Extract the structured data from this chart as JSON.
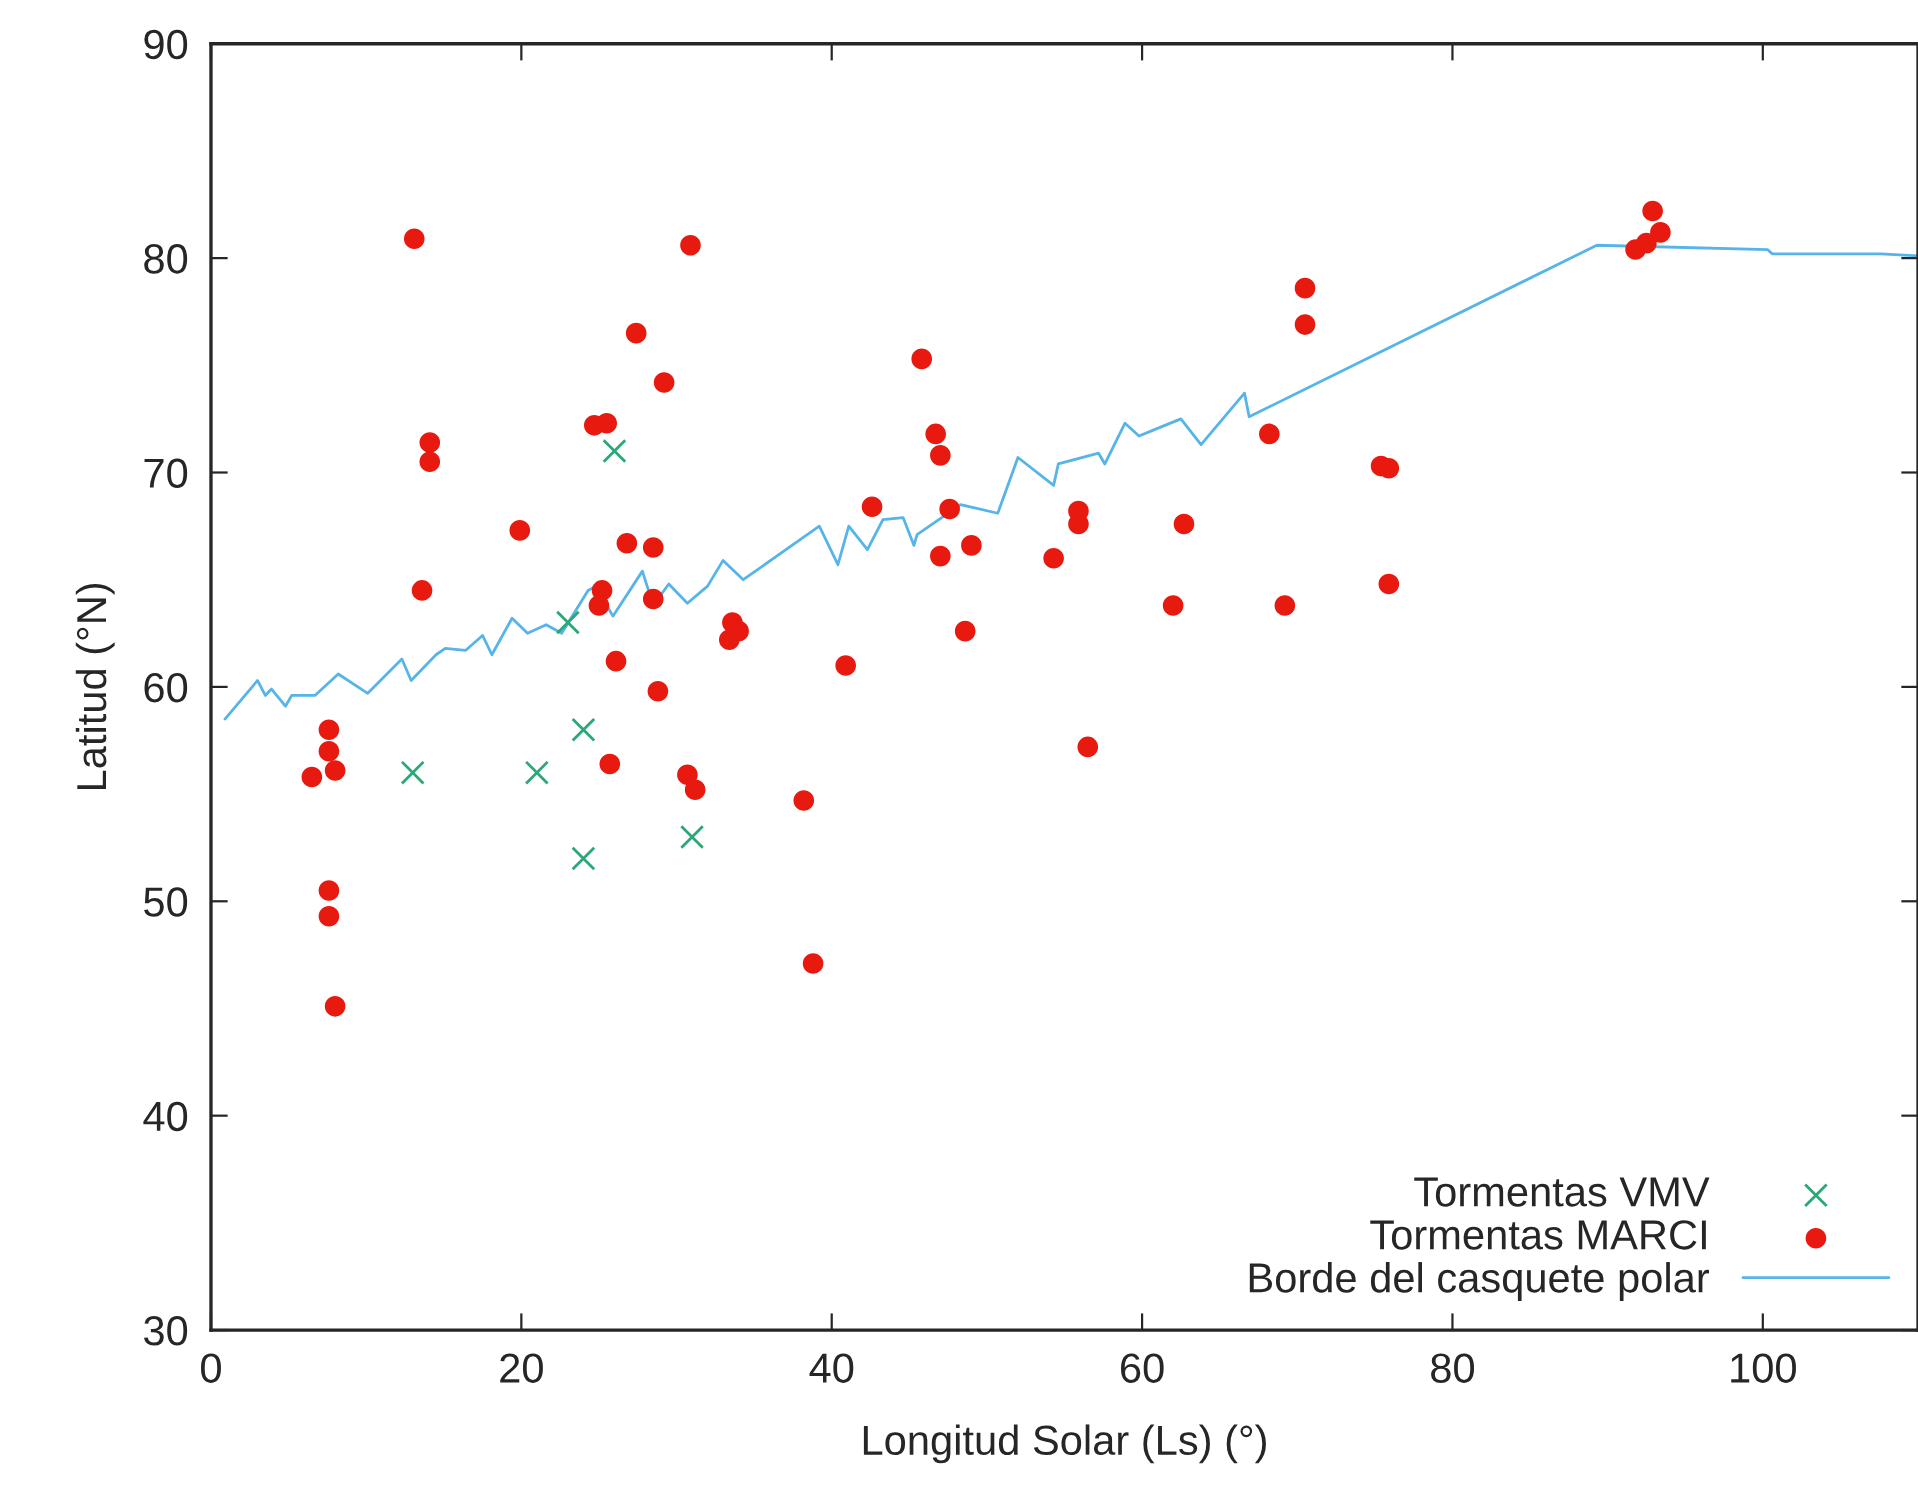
{
  "chart_data": {
    "type": "scatter",
    "xlabel": "Longitud Solar (Ls) (°)",
    "ylabel": "Latitud (°N)",
    "xlim": [
      0,
      110
    ],
    "ylim": [
      30,
      90
    ],
    "xticks": [
      0,
      20,
      40,
      60,
      80,
      100
    ],
    "yticks": [
      30,
      40,
      50,
      60,
      70,
      80,
      90
    ],
    "grid": false,
    "legend": "bottom right",
    "series": [
      {
        "name": "Tormentas VMV",
        "marker": "cross",
        "color": "#2aa876",
        "x": [
          13,
          21,
          23,
          24,
          24,
          26,
          31
        ],
        "values": [
          56,
          56,
          63,
          58,
          52,
          71,
          53
        ]
      },
      {
        "name": "Tormentas MARCI",
        "marker": "circle",
        "color": "#e8190f",
        "x": [
          13.1,
          30.9,
          27.4,
          29.2,
          24.7,
          25.5,
          14.1,
          14.1,
          19.9,
          26.8,
          28.5,
          13.6,
          25.2,
          25.0,
          28.5,
          26.1,
          28.8,
          33.6,
          34.0,
          33.4,
          25.7,
          30.7,
          31.2,
          6.5,
          7.6,
          7.6,
          8.0,
          7.6,
          7.6,
          8.0,
          38.2,
          38.8,
          40.9,
          42.6,
          45.8,
          46.7,
          47.0,
          47.6,
          47.0,
          49.0,
          48.6,
          54.3,
          55.9,
          55.9,
          56.5,
          62.0,
          62.7,
          68.2,
          70.5,
          70.5,
          69.2,
          75.4,
          75.9,
          75.9,
          91.8,
          92.5,
          92.9,
          93.4
        ],
        "values": [
          80.9,
          80.6,
          76.5,
          74.2,
          72.2,
          72.3,
          71.4,
          70.5,
          67.3,
          66.7,
          66.5,
          64.5,
          64.5,
          63.8,
          64.1,
          61.2,
          59.8,
          63.0,
          62.6,
          62.2,
          56.4,
          55.9,
          55.2,
          55.8,
          58.0,
          57.0,
          56.1,
          50.5,
          49.3,
          45.1,
          54.7,
          47.1,
          61.0,
          68.4,
          75.3,
          71.8,
          70.8,
          68.3,
          66.1,
          66.6,
          62.6,
          66.0,
          68.2,
          67.6,
          57.2,
          63.8,
          67.6,
          71.8,
          78.6,
          76.9,
          63.8,
          70.3,
          70.2,
          64.8,
          80.4,
          80.7,
          82.2,
          81.2
        ]
      },
      {
        "name": "Borde del casquete polar",
        "type": "line",
        "marker": "none",
        "line_style": "solid",
        "color": "#56b4e9",
        "x": [
          0.9,
          3.0,
          3.5,
          3.9,
          4.8,
          5.2,
          6.7,
          8.2,
          10.1,
          12.3,
          12.9,
          14.5,
          15.1,
          16.4,
          17.5,
          18.1,
          19.4,
          20.4,
          21.6,
          22.6,
          24.3,
          24.8,
          25.9,
          27.8,
          28.5,
          29.5,
          30.7,
          32.0,
          33.0,
          34.3,
          39.2,
          40.4,
          41.1,
          42.3,
          43.3,
          44.6,
          45.3,
          45.5,
          48.3,
          50.7,
          52.0,
          54.3,
          54.6,
          57.2,
          57.6,
          58.9,
          59.8,
          60.8,
          62.5,
          63.8,
          66.6,
          66.9,
          89.3,
          100.3,
          100.6,
          107.6,
          110
        ],
        "values": [
          58.5,
          60.3,
          59.6,
          59.9,
          59.1,
          59.6,
          59.6,
          60.6,
          59.7,
          61.3,
          60.3,
          61.5,
          61.8,
          61.7,
          62.4,
          61.5,
          63.2,
          62.5,
          62.9,
          62.5,
          64.5,
          64.7,
          63.3,
          65.4,
          63.8,
          64.8,
          63.9,
          64.7,
          65.9,
          65.0,
          67.5,
          65.7,
          67.5,
          66.4,
          67.8,
          67.9,
          66.6,
          67.1,
          68.5,
          68.1,
          70.7,
          69.4,
          70.4,
          70.9,
          70.4,
          72.3,
          71.7,
          72.0,
          72.5,
          71.3,
          73.7,
          72.6,
          80.6,
          80.4,
          80.2,
          80.2,
          80.1
        ]
      }
    ]
  }
}
